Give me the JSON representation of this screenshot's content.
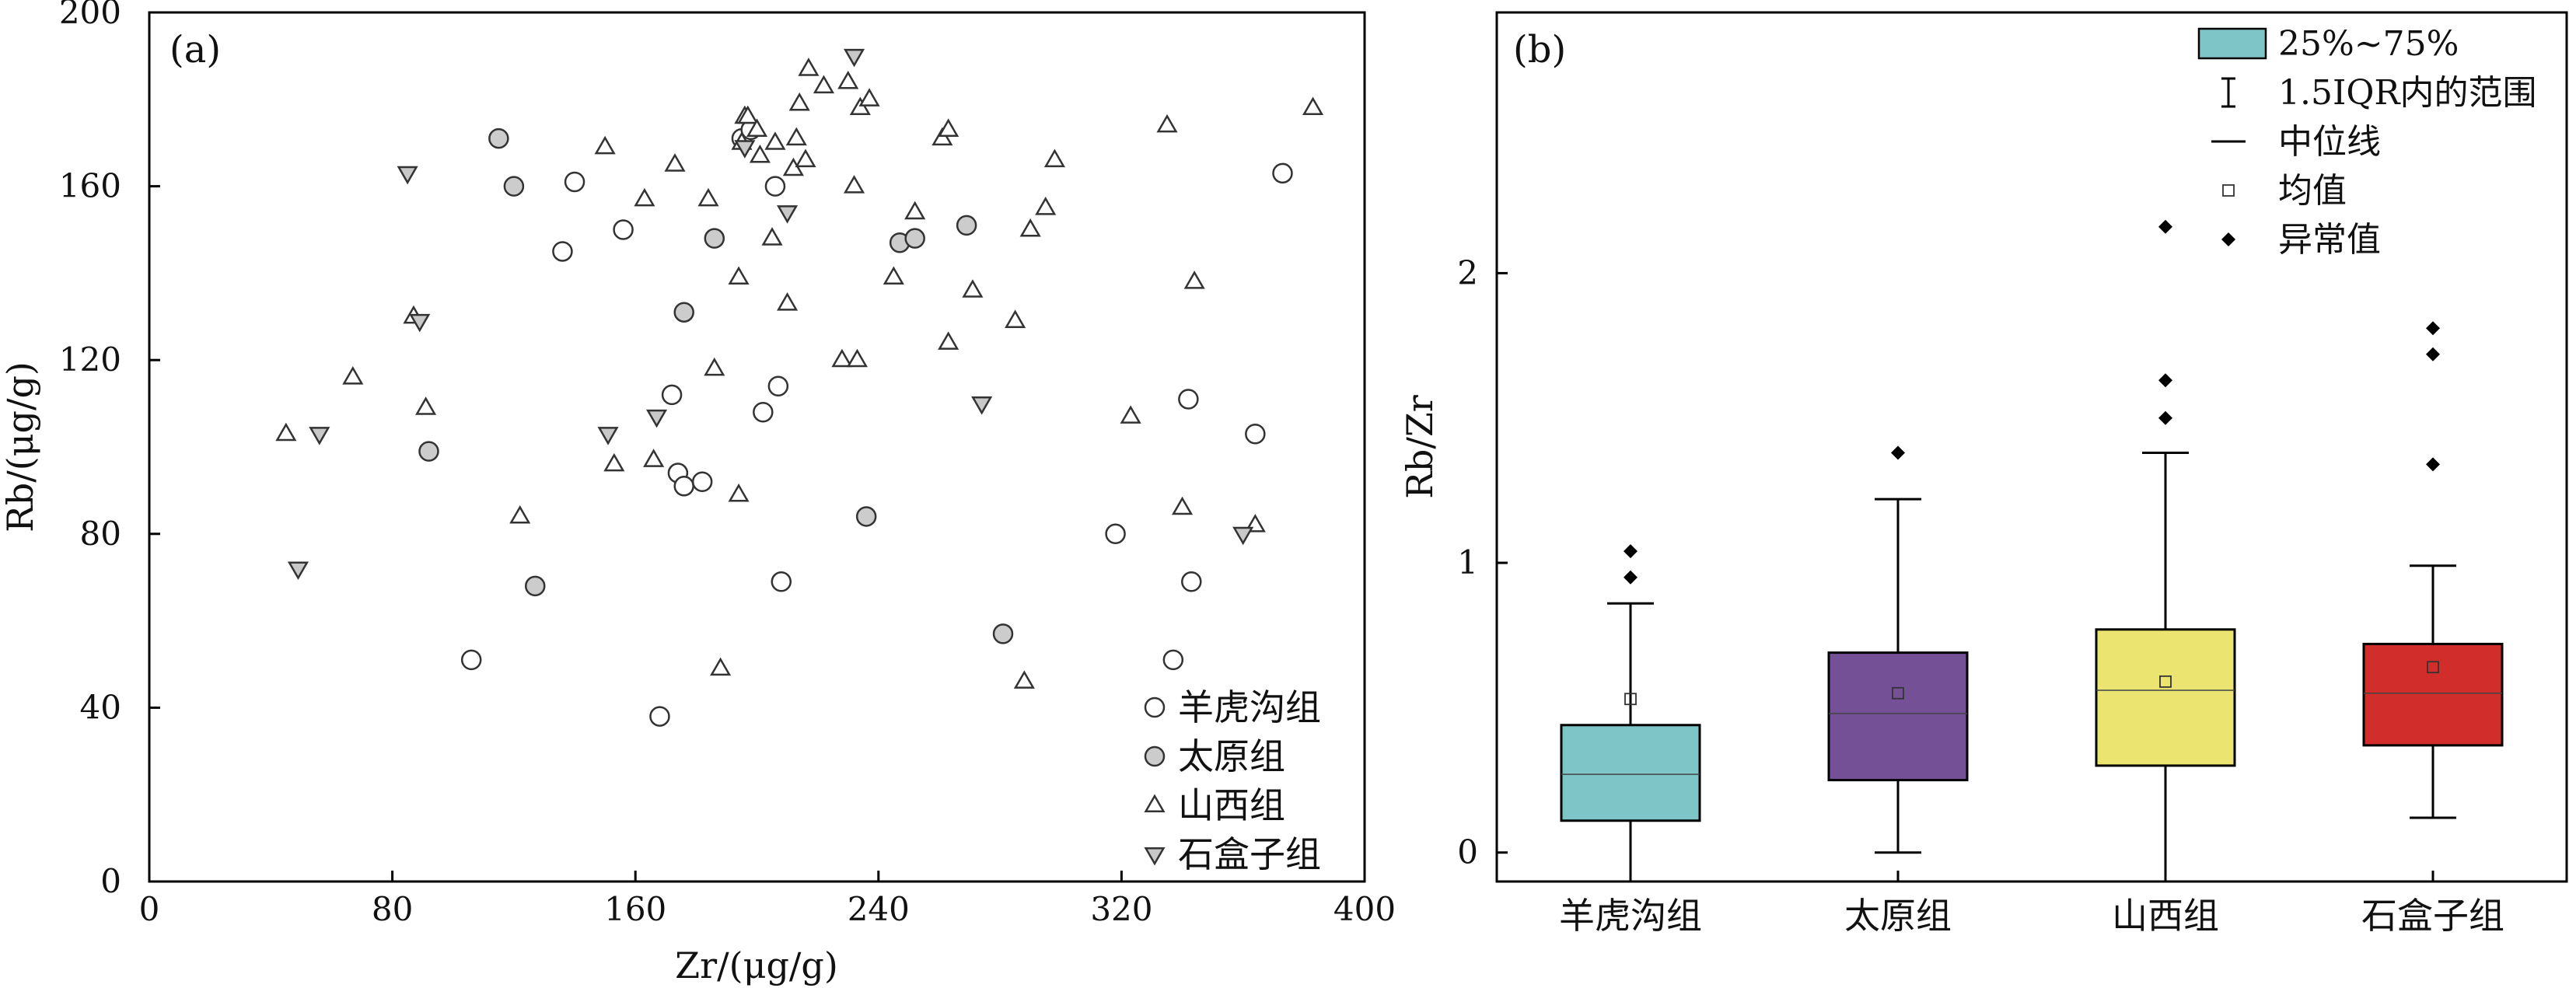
{
  "chart_data": [
    {
      "type": "scatter",
      "panel_label": "(a)",
      "xlabel": "Zr/(μg/g)",
      "ylabel": "Rb/(μg/g)",
      "xlim": [
        0,
        400
      ],
      "ylim": [
        0,
        200
      ],
      "x_ticks": [
        0,
        80,
        160,
        240,
        320,
        400
      ],
      "y_ticks": [
        0,
        40,
        80,
        120,
        160,
        200
      ],
      "legend_position": "bottom-right",
      "series": [
        {
          "name": "羊虎沟组",
          "marker": "circle-open",
          "color": "#ffffff",
          "points": [
            [
              106,
              51
            ],
            [
              136,
              145
            ],
            [
              140,
              161
            ],
            [
              156,
              150
            ],
            [
              168,
              38
            ],
            [
              172,
              112
            ],
            [
              174,
              94
            ],
            [
              176,
              91
            ],
            [
              182,
              92
            ],
            [
              195,
              171
            ],
            [
              198,
              173
            ],
            [
              202,
              108
            ],
            [
              206,
              160
            ],
            [
              207,
              114
            ],
            [
              208,
              69
            ],
            [
              318,
              80
            ],
            [
              337,
              51
            ],
            [
              342,
              111
            ],
            [
              343,
              69
            ],
            [
              364,
              103
            ],
            [
              373,
              163
            ]
          ]
        },
        {
          "name": "太原组",
          "marker": "circle-filled",
          "color": "#cccccc",
          "points": [
            [
              92,
              99
            ],
            [
              115,
              171
            ],
            [
              120,
              160
            ],
            [
              127,
              68
            ],
            [
              176,
              131
            ],
            [
              186,
              148
            ],
            [
              236,
              84
            ],
            [
              247,
              147
            ],
            [
              252,
              148
            ],
            [
              269,
              151
            ],
            [
              281,
              57
            ]
          ]
        },
        {
          "name": "山西组",
          "marker": "triangle-up",
          "color": "#ffffff",
          "points": [
            [
              45,
              103
            ],
            [
              67,
              116
            ],
            [
              87,
              130
            ],
            [
              91,
              109
            ],
            [
              122,
              84
            ],
            [
              150,
              169
            ],
            [
              153,
              96
            ],
            [
              163,
              157
            ],
            [
              166,
              97
            ],
            [
              173,
              165
            ],
            [
              184,
              157
            ],
            [
              186,
              118
            ],
            [
              188,
              49
            ],
            [
              194,
              89
            ],
            [
              194,
              139
            ],
            [
              195,
              170
            ],
            [
              196,
              176
            ],
            [
              197,
              176
            ],
            [
              200,
              173
            ],
            [
              201,
              167
            ],
            [
              205,
              148
            ],
            [
              206,
              170
            ],
            [
              210,
              133
            ],
            [
              212,
              164
            ],
            [
              213,
              171
            ],
            [
              214,
              179
            ],
            [
              216,
              166
            ],
            [
              217,
              187
            ],
            [
              222,
              183
            ],
            [
              228,
              120
            ],
            [
              230,
              184
            ],
            [
              232,
              160
            ],
            [
              233,
              120
            ],
            [
              234,
              178
            ],
            [
              237,
              180
            ],
            [
              245,
              139
            ],
            [
              252,
              154
            ],
            [
              263,
              124
            ],
            [
              271,
              136
            ],
            [
              261,
              171
            ],
            [
              263,
              173
            ],
            [
              285,
              129
            ],
            [
              288,
              46
            ],
            [
              290,
              150
            ],
            [
              295,
              155
            ],
            [
              298,
              166
            ],
            [
              323,
              107
            ],
            [
              335,
              174
            ],
            [
              340,
              86
            ],
            [
              344,
              138
            ],
            [
              364,
              82
            ],
            [
              383,
              178
            ]
          ]
        },
        {
          "name": "石盒子组",
          "marker": "triangle-down",
          "color": "#c8c8c8",
          "points": [
            [
              49,
              72
            ],
            [
              56,
              103
            ],
            [
              85,
              163
            ],
            [
              89,
              129
            ],
            [
              151,
              103
            ],
            [
              167,
              107
            ],
            [
              196,
              169
            ],
            [
              210,
              154
            ],
            [
              232,
              190
            ],
            [
              274,
              110
            ],
            [
              360,
              80
            ]
          ]
        }
      ]
    },
    {
      "type": "box",
      "panel_label": "(b)",
      "ylabel": "Rb/Zr",
      "ylim": [
        -0.1,
        2.9
      ],
      "y_ticks": [
        0,
        1,
        2
      ],
      "categories": [
        "羊虎沟组",
        "太原组",
        "山西组",
        "石盒子组"
      ],
      "boxes": [
        {
          "name": "羊虎沟组",
          "color": "#7ec5c8",
          "whisker_low": -0.1,
          "q1": 0.11,
          "median": 0.27,
          "q3": 0.44,
          "whisker_high": 0.86,
          "mean": 0.53,
          "outliers": [
            0.95,
            1.04
          ]
        },
        {
          "name": "太原组",
          "color": "#745096",
          "whisker_low": 0.0,
          "q1": 0.25,
          "median": 0.48,
          "q3": 0.69,
          "whisker_high": 1.22,
          "mean": 0.55,
          "outliers": [
            1.38
          ]
        },
        {
          "name": "山西组",
          "color": "#ece471",
          "whisker_low": -0.1,
          "q1": 0.3,
          "median": 0.56,
          "q3": 0.77,
          "whisker_high": 1.38,
          "mean": 0.59,
          "outliers": [
            1.5,
            1.63,
            2.16
          ]
        },
        {
          "name": "石盒子组",
          "color": "#d12e2b",
          "whisker_low": 0.12,
          "q1": 0.37,
          "median": 0.55,
          "q3": 0.72,
          "whisker_high": 0.99,
          "mean": 0.64,
          "outliers": [
            1.34,
            1.72,
            1.81
          ]
        }
      ],
      "legend_position": "top-right",
      "legend": [
        {
          "symbol": "box",
          "label": "25%~75%",
          "color": "#7ec5c8"
        },
        {
          "symbol": "whisker",
          "label": "1.5IQR内的范围"
        },
        {
          "symbol": "line",
          "label": "中位线"
        },
        {
          "symbol": "square",
          "label": "均值"
        },
        {
          "symbol": "diamond",
          "label": "异常值"
        }
      ]
    }
  ]
}
